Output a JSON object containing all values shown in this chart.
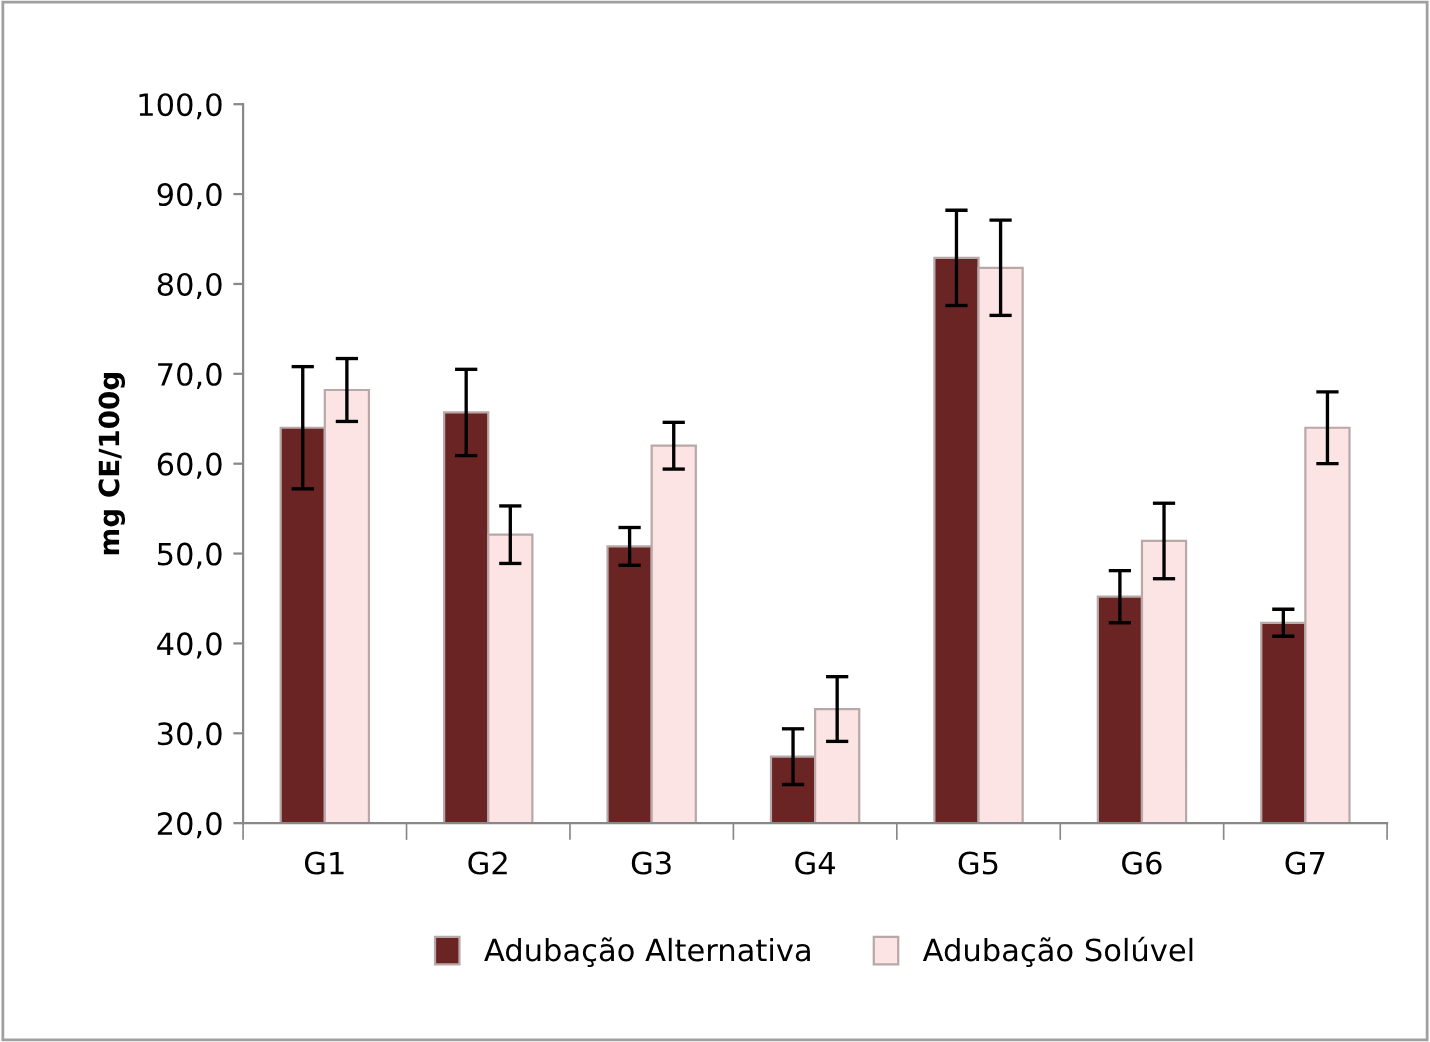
{
  "chart_data": {
    "type": "bar",
    "ylabel": "mg CE/100g",
    "categories": [
      "G1",
      "G2",
      "G3",
      "G4",
      "G5",
      "G6",
      "G7"
    ],
    "series": [
      {
        "name": "Adubação Alternativa",
        "color": "#6b2424",
        "values": [
          64.0,
          65.7,
          50.8,
          27.4,
          82.9,
          45.2,
          42.3
        ],
        "errors": [
          6.8,
          4.8,
          2.1,
          3.1,
          5.3,
          2.9,
          1.5
        ]
      },
      {
        "name": "Adubação Solúvel",
        "color": "#fce4e4",
        "values": [
          68.2,
          52.1,
          62.0,
          32.7,
          81.8,
          51.4,
          64.0
        ],
        "errors": [
          3.5,
          3.2,
          2.6,
          3.6,
          5.3,
          4.2,
          4.0
        ]
      }
    ],
    "ylim": [
      20,
      100
    ],
    "yticks": [
      {
        "value": 20,
        "label": "20,0"
      },
      {
        "value": 30,
        "label": "30,0"
      },
      {
        "value": 40,
        "label": "40,0"
      },
      {
        "value": 50,
        "label": "50,0"
      },
      {
        "value": 60,
        "label": "60,0"
      },
      {
        "value": 70,
        "label": "70,0"
      },
      {
        "value": 80,
        "label": "80,0"
      },
      {
        "value": 90,
        "label": "90,0"
      },
      {
        "value": 100,
        "label": "100,0"
      }
    ],
    "grid": false,
    "legend": "bottom"
  }
}
